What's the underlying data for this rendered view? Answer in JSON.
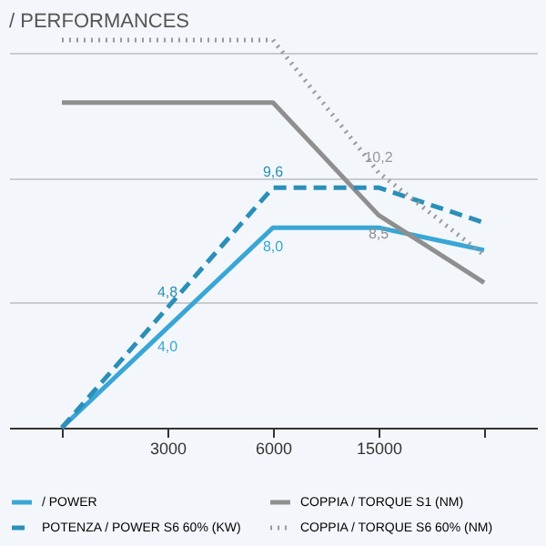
{
  "chart_data": {
    "type": "line",
    "title": "/ PERFORMANCES",
    "categories": [
      null,
      "3000",
      "6000",
      "15000",
      null
    ],
    "series": [
      {
        "name": "/ POWER",
        "color": "#3aa6d6",
        "line_style": "solid",
        "values": [
          0,
          4.0,
          8.0,
          8.0,
          7.1
        ],
        "value_labels": [
          null,
          "4,0",
          "8,0",
          null,
          null
        ]
      },
      {
        "name": "COPPIA / TORQUE S1 (NM)",
        "color": "#8f8f8f",
        "line_style": "solid",
        "values": [
          13.0,
          13.0,
          13.0,
          8.5,
          5.8
        ],
        "value_labels": [
          null,
          null,
          null,
          "8,5",
          null
        ]
      },
      {
        "name": "POTENZA / POWER S6 60% (KW)",
        "color": "#2b8fb8",
        "line_style": "dashed",
        "values": [
          0,
          4.8,
          9.6,
          9.6,
          8.2
        ],
        "value_labels": [
          null,
          "4,8",
          "9,6",
          null,
          null
        ]
      },
      {
        "name": "COPPIA / TORQUE S6 60% (NM)",
        "color": "#999999",
        "line_style": "dotted",
        "values": [
          15.5,
          15.5,
          15.5,
          10.2,
          6.9
        ],
        "value_labels": [
          null,
          null,
          null,
          "10,2",
          null
        ]
      }
    ],
    "yticks": [
      {
        "value": 5,
        "label": null
      },
      {
        "value": 10,
        "label": null
      },
      {
        "value": 15,
        "label": null
      }
    ],
    "grid": "y",
    "tick_labels": "x",
    "legend": "bottom",
    "marker": "none"
  }
}
